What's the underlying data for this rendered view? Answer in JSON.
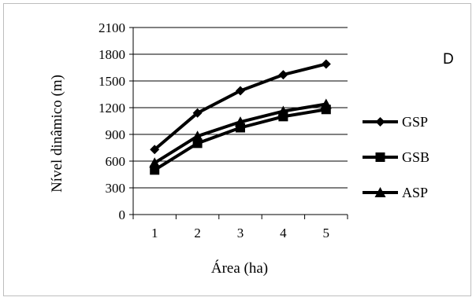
{
  "chart_data": {
    "type": "line",
    "title": "",
    "panel_label": "D",
    "xlabel": "Área (ha)",
    "ylabel": "Nível dinâmico (m)",
    "categories": [
      "1",
      "2",
      "3",
      "4",
      "5"
    ],
    "x": [
      1,
      2,
      3,
      4,
      5
    ],
    "ylim": [
      0,
      2100
    ],
    "yticks": [
      "0",
      "300",
      "600",
      "900",
      "1200",
      "1500",
      "1800",
      "2100"
    ],
    "grid": true,
    "legend_position": "right",
    "series": [
      {
        "name": "GSP",
        "values": [
          730,
          1140,
          1390,
          1570,
          1690
        ],
        "marker": "diamond"
      },
      {
        "name": "GSB",
        "values": [
          500,
          800,
          975,
          1100,
          1180
        ],
        "marker": "square"
      },
      {
        "name": "ASP",
        "values": [
          580,
          880,
          1040,
          1160,
          1240
        ],
        "marker": "triangle"
      }
    ],
    "colors": {
      "line": "#000000",
      "grid": "#000000"
    }
  }
}
